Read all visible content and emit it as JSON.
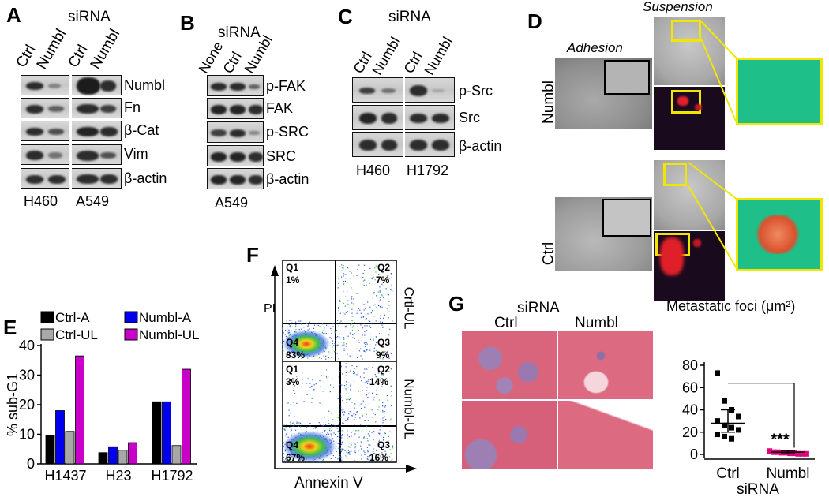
{
  "panel_letters": {
    "a": "A",
    "b": "B",
    "c": "C",
    "d": "D",
    "e": "E",
    "f": "F",
    "g": "G"
  },
  "panel_a": {
    "header": "siRNA",
    "lanes": [
      "Ctrl",
      "Numbl",
      "Ctrl",
      "Numbl"
    ],
    "proteins": [
      "Numbl",
      "Fn",
      "β-Cat",
      "Vim",
      "β-actin"
    ],
    "cell_lines": [
      "H460",
      "A549"
    ]
  },
  "panel_b": {
    "header": "siRNA",
    "lanes": [
      "None",
      "Ctrl",
      "Numbl"
    ],
    "proteins": [
      "p-FAK",
      "FAK",
      "p-SRC",
      "SRC",
      "β-actin"
    ],
    "cell_line": "A549"
  },
  "panel_c": {
    "header": "siRNA",
    "lanes": [
      "Ctrl",
      "Numbl",
      "Ctrl",
      "Numbl"
    ],
    "proteins": [
      "p-Src",
      "Src",
      "β-actin"
    ],
    "cell_lines": [
      "H460",
      "H1792"
    ]
  },
  "panel_d": {
    "adhesion": "Adhesion",
    "suspension": "Suspension",
    "rows": [
      "Numbl",
      "Ctrl"
    ]
  },
  "panel_f": {
    "y_axis": "PI",
    "x_axis": "Annexin V",
    "plots": [
      {
        "label": "Crtl-UL",
        "q1": "Q1",
        "q1v": "1%",
        "q2": "Q2",
        "q2v": "7%",
        "q3": "Q3",
        "q3v": "9%",
        "q4": "Q4",
        "q4v": "83%"
      },
      {
        "label": "Numbl-UL",
        "q1": "Q1",
        "q1v": "3%",
        "q2": "Q2",
        "q2v": "14%",
        "q3": "Q3",
        "q3v": "16%",
        "q4": "Q4",
        "q4v": "67%"
      }
    ]
  },
  "panel_g": {
    "header": "siRNA",
    "cols": [
      "Ctrl",
      "Numbl"
    ],
    "colors": {
      "tissue": "#d9637a",
      "tissue_light": "#ecc2c8",
      "focus": "#8a6fa8"
    }
  },
  "chart_data": [
    {
      "type": "bar",
      "ylabel": "% sub-G1",
      "categories": [
        "H1437",
        "H23",
        "H1792"
      ],
      "ylim": [
        0,
        40
      ],
      "yticks": [
        "0",
        "10",
        "20",
        "30",
        "40"
      ],
      "grid": false,
      "legend": "top",
      "series": [
        {
          "name": "Ctrl-A",
          "color": "#000000",
          "values": [
            9.5,
            3.8,
            21
          ]
        },
        {
          "name": "Numbl-A",
          "color": "#0000ee",
          "values": [
            18,
            5.8,
            21
          ]
        },
        {
          "name": "Ctrl-UL",
          "color": "#a8a8a8",
          "values": [
            11,
            4.6,
            6.2
          ]
        },
        {
          "name": "Numbl-UL",
          "color": "#c800c8",
          "values": [
            36.5,
            7.2,
            32
          ]
        }
      ]
    },
    {
      "type": "scatter",
      "title": "Metastatic foci (μm²)",
      "categories": [
        "Ctrl",
        "Numbl"
      ],
      "xlabel": "siRNA",
      "ylim": [
        0,
        80
      ],
      "yticks": [
        "0",
        "20",
        "40",
        "60",
        "80"
      ],
      "annotation": "***",
      "series": [
        {
          "name": "Ctrl",
          "color": "#000000",
          "marker": "square",
          "mean": 28,
          "sem_low": 20,
          "sem_high": 40,
          "values": [
            73,
            48,
            40,
            34,
            30,
            26,
            24,
            22,
            18,
            16,
            14
          ]
        },
        {
          "name": "Numbl",
          "color": "#e0007a",
          "marker": "square",
          "mean": 2,
          "sem_low": 0.5,
          "sem_high": 3.5,
          "values": [
            3,
            2,
            2,
            1.5,
            1.5,
            1,
            1,
            0.5,
            0.5,
            0.5
          ]
        }
      ]
    }
  ]
}
